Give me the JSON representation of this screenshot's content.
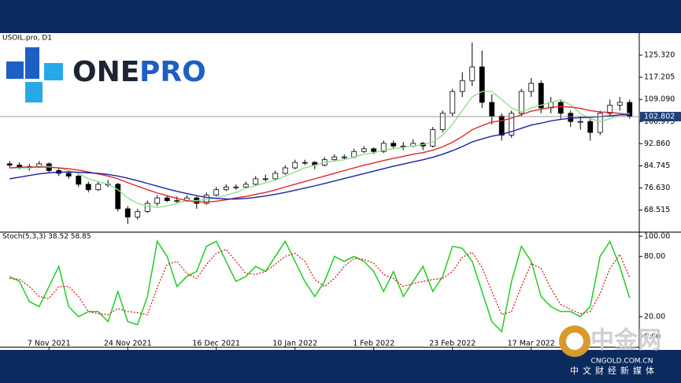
{
  "chart_data": [
    {
      "type": "candlestick",
      "title": "USOIL.pro, D1",
      "categories": [
        null,
        null,
        null,
        null,
        "7 Nov 2021",
        null,
        null,
        null,
        null,
        null,
        null,
        null,
        "24 Nov 2021",
        null,
        null,
        null,
        null,
        null,
        null,
        null,
        null,
        "16 Dec 2021",
        null,
        null,
        null,
        null,
        null,
        null,
        null,
        "10 Jan 2022",
        null,
        null,
        null,
        null,
        null,
        null,
        null,
        "1 Feb 2022",
        null,
        null,
        null,
        null,
        null,
        null,
        null,
        "23 Feb 2022",
        null,
        null,
        null,
        null,
        null,
        null,
        null,
        "17 Mar 2022",
        null,
        null,
        null,
        null,
        null,
        null,
        null,
        null,
        null,
        null
      ],
      "ohlc": [
        [
          85.5,
          86.5,
          84,
          85
        ],
        [
          85,
          86,
          83.5,
          84
        ],
        [
          84,
          85.5,
          83,
          84.5
        ],
        [
          84.5,
          86.5,
          84,
          85.5
        ],
        [
          85.5,
          86,
          82.5,
          83
        ],
        [
          83,
          84,
          81,
          82
        ],
        [
          82,
          83,
          80,
          81
        ],
        [
          81,
          81.5,
          77,
          78
        ],
        [
          78,
          79,
          75,
          76
        ],
        [
          76,
          79,
          75.5,
          78
        ],
        [
          78,
          79.5,
          77,
          78
        ],
        [
          78,
          78.5,
          68,
          69
        ],
        [
          69,
          70,
          63.5,
          66
        ],
        [
          66,
          69,
          65,
          68
        ],
        [
          68,
          72,
          67.5,
          71
        ],
        [
          71,
          74,
          70,
          73
        ],
        [
          73,
          74,
          71.5,
          72
        ],
        [
          72,
          73.5,
          71,
          72
        ],
        [
          72,
          74,
          71.5,
          73
        ],
        [
          73,
          73.5,
          69,
          71
        ],
        [
          71,
          75,
          70.5,
          74
        ],
        [
          74,
          77,
          73.5,
          76
        ],
        [
          76,
          78,
          75.5,
          77
        ],
        [
          77,
          78,
          76,
          77
        ],
        [
          77,
          79,
          76.5,
          78
        ],
        [
          78,
          81,
          77.5,
          80
        ],
        [
          80,
          81.5,
          79,
          80
        ],
        [
          80,
          83,
          79.5,
          82
        ],
        [
          82,
          85,
          81.5,
          84
        ],
        [
          84,
          87,
          83.5,
          86
        ],
        [
          86,
          87,
          85,
          86
        ],
        [
          86,
          86.5,
          83.5,
          85
        ],
        [
          85,
          88,
          84.5,
          87
        ],
        [
          87,
          89,
          86.5,
          88
        ],
        [
          88,
          89,
          87,
          88
        ],
        [
          88,
          91,
          87.5,
          90
        ],
        [
          90,
          92,
          89.5,
          91
        ],
        [
          91,
          91.5,
          89,
          90
        ],
        [
          90,
          94,
          89.5,
          93
        ],
        [
          93,
          94,
          91,
          92
        ],
        [
          92,
          93.5,
          90.5,
          92
        ],
        [
          92,
          94.5,
          91.5,
          93
        ],
        [
          93,
          93.5,
          90.5,
          92
        ],
        [
          92,
          99,
          91.5,
          98
        ],
        [
          98,
          105,
          97,
          104
        ],
        [
          104,
          113,
          103,
          112
        ],
        [
          112,
          119,
          110,
          116
        ],
        [
          116,
          130,
          114,
          121
        ],
        [
          121,
          127,
          106,
          108
        ],
        [
          108,
          111,
          100,
          103
        ],
        [
          103,
          104,
          94,
          96
        ],
        [
          96,
          105,
          95,
          104
        ],
        [
          104,
          113,
          103,
          112
        ],
        [
          112,
          117,
          110,
          115
        ],
        [
          115,
          116,
          104,
          106
        ],
        [
          106,
          110,
          104,
          108
        ],
        [
          108,
          109,
          102,
          104
        ],
        [
          104,
          105,
          99,
          101
        ],
        [
          101,
          103,
          98,
          101
        ],
        [
          101,
          102,
          94,
          97
        ],
        [
          97,
          105,
          96,
          104
        ],
        [
          104,
          109,
          103,
          107
        ],
        [
          107,
          110,
          105,
          108
        ],
        [
          108,
          109,
          102,
          102.8
        ]
      ],
      "series": [
        {
          "color": "#8ee08e",
          "values": [
            84,
            84,
            84,
            84.5,
            84.5,
            84,
            83,
            82,
            80,
            79,
            78,
            76,
            73,
            71,
            70,
            69.5,
            70,
            71,
            72,
            72,
            72.5,
            73,
            74,
            75,
            76.5,
            77.5,
            78.5,
            79.5,
            81,
            82.5,
            84,
            85,
            86,
            86.5,
            87,
            88,
            89,
            89.5,
            90.5,
            91,
            91.5,
            92,
            92.5,
            93.5,
            96,
            100,
            105,
            110,
            112,
            112,
            109,
            106,
            104.5,
            106,
            107,
            108,
            109,
            107,
            104,
            102,
            101,
            102,
            103.5,
            104
          ]
        },
        {
          "color": "#e0262b",
          "values": [
            84,
            84.2,
            84.3,
            84.3,
            84.2,
            84,
            83.7,
            83.2,
            82.5,
            81.8,
            81,
            80,
            78.6,
            77.3,
            76,
            74.8,
            73.8,
            72.8,
            72,
            71.5,
            71.5,
            71.8,
            72.3,
            73,
            73.5,
            74.3,
            75,
            75.9,
            77,
            78,
            79,
            80,
            81,
            82,
            83,
            84,
            85,
            85.8,
            86.7,
            87.5,
            88.2,
            89,
            89.6,
            90.5,
            91.7,
            93.4,
            95.5,
            98,
            99.5,
            100.8,
            101.3,
            102.2,
            103.5,
            104.8,
            105.5,
            106.2,
            106.5,
            106.3,
            105.8,
            105,
            104.5,
            104.3,
            104,
            103.5
          ]
        },
        {
          "color": "#1a22a8",
          "values": [
            80,
            80.6,
            81.2,
            81.8,
            82.2,
            82.4,
            82.5,
            82.4,
            82.2,
            82,
            81.6,
            81,
            80.2,
            79.3,
            78.3,
            77.3,
            76.3,
            75.4,
            74.6,
            73.8,
            73.2,
            72.8,
            72.6,
            72.6,
            72.8,
            73.2,
            73.7,
            74.3,
            75,
            75.8,
            76.6,
            77.4,
            78.3,
            79.2,
            80.1,
            81,
            81.9,
            82.8,
            83.7,
            84.6,
            85.4,
            86.2,
            87,
            87.9,
            89,
            90.3,
            91.8,
            93.5,
            94.6,
            95.6,
            96.3,
            97.3,
            98.5,
            99.7,
            100.4,
            101.2,
            101.8,
            102.2,
            102.4,
            102.5,
            102.8,
            103.1,
            103.4,
            103.4
          ]
        }
      ],
      "current_price": {
        "value": 102.802,
        "label": "102.802"
      },
      "ylim": [
        60.9,
        133.4
      ],
      "yticks": [
        {
          "value": 68.515,
          "label": "68.515"
        },
        {
          "value": 76.63,
          "label": "76.630"
        },
        {
          "value": 84.745,
          "label": "84.745"
        },
        {
          "value": 92.86,
          "label": "92.860"
        },
        {
          "value": 100.975,
          "label": "100.975"
        },
        {
          "value": 109.09,
          "label": "109.090"
        },
        {
          "value": 117.205,
          "label": "117.205"
        },
        {
          "value": 125.32,
          "label": "125.320"
        }
      ]
    },
    {
      "type": "line",
      "title": "Stoch(5,3,3) 38.52 58.85",
      "series": [
        {
          "color": "#22cc22",
          "dash": false,
          "values": [
            60,
            55,
            35,
            30,
            50,
            70,
            30,
            20,
            25,
            25,
            15,
            45,
            15,
            12,
            40,
            95,
            80,
            50,
            60,
            65,
            90,
            95,
            75,
            55,
            60,
            70,
            65,
            80,
            95,
            75,
            55,
            40,
            55,
            80,
            75,
            80,
            75,
            65,
            45,
            65,
            40,
            55,
            70,
            45,
            60,
            90,
            88,
            75,
            45,
            15,
            5,
            55,
            90,
            75,
            40,
            30,
            25,
            25,
            20,
            30,
            80,
            95,
            70,
            38.52
          ]
        },
        {
          "color": "#d42020",
          "dash": true,
          "values": [
            58,
            57,
            50,
            40,
            38,
            50,
            50,
            40,
            25,
            23,
            22,
            28,
            25,
            24,
            22,
            49,
            72,
            75,
            63,
            58,
            72,
            83,
            87,
            75,
            63,
            62,
            65,
            72,
            80,
            83,
            75,
            57,
            50,
            58,
            70,
            78,
            77,
            73,
            62,
            58,
            50,
            53,
            55,
            57,
            58,
            65,
            79,
            84,
            69,
            45,
            22,
            25,
            50,
            73,
            68,
            48,
            32,
            27,
            23,
            25,
            43,
            68,
            82,
            58.85
          ]
        }
      ],
      "ylim": [
        -10,
        103
      ],
      "yticks": [
        {
          "value": 0,
          "label": "0.00"
        },
        {
          "value": 20,
          "label": "20.00"
        },
        {
          "value": 80,
          "label": "80.00"
        },
        {
          "value": 100,
          "label": "100.00"
        }
      ]
    }
  ],
  "logo": {
    "one": "ONE",
    "pro": "PRO"
  },
  "watermark": {
    "name": "中金网",
    "site": "CNGOLD.COM.CN",
    "slogan": "中文财经新媒体"
  }
}
